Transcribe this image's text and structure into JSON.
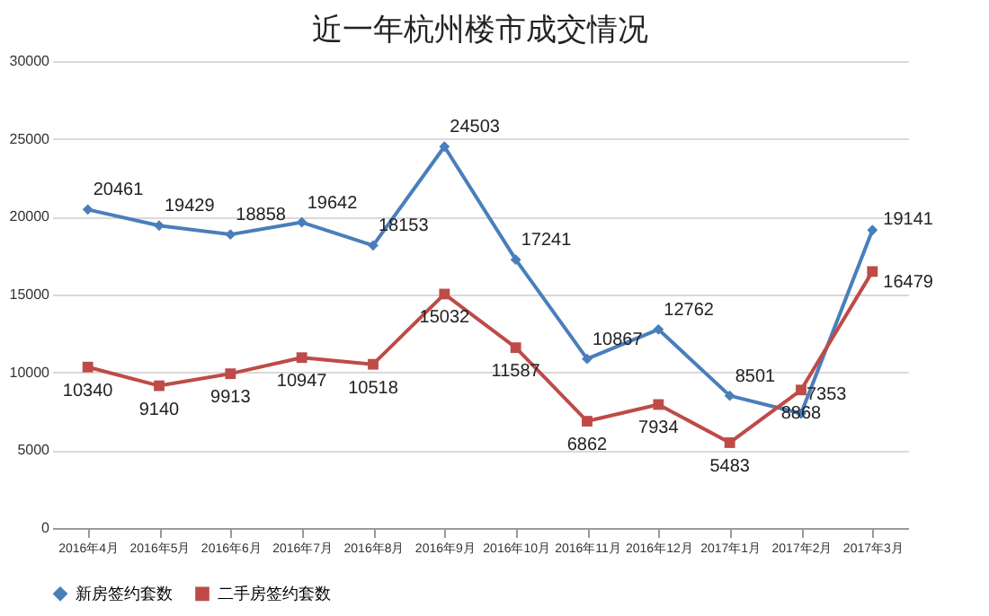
{
  "chart_data": {
    "type": "line",
    "title": "近一年杭州楼市成交情况",
    "categories": [
      "2016年4月",
      "2016年5月",
      "2016年6月",
      "2016年7月",
      "2016年8月",
      "2016年9月",
      "2016年10月",
      "2016年11月",
      "2016年12月",
      "2017年1月",
      "2017年2月",
      "2017年3月"
    ],
    "series": [
      {
        "name": "新房签约套数",
        "color": "#4a7ebb",
        "marker": "diamond",
        "values": [
          20461,
          19429,
          18858,
          19642,
          18153,
          24503,
          17241,
          10867,
          12762,
          8501,
          7353,
          19141
        ]
      },
      {
        "name": "二手房签约套数",
        "color": "#be4b48",
        "marker": "square",
        "values": [
          10340,
          9140,
          9913,
          10947,
          10518,
          15032,
          11587,
          6862,
          7934,
          5483,
          8868,
          16479
        ]
      }
    ],
    "ylim": [
      0,
      30000
    ],
    "yticks": [
      0,
      5000,
      10000,
      15000,
      20000,
      25000,
      30000
    ],
    "grid": "y",
    "legend": "bottom",
    "data_labels": true
  }
}
